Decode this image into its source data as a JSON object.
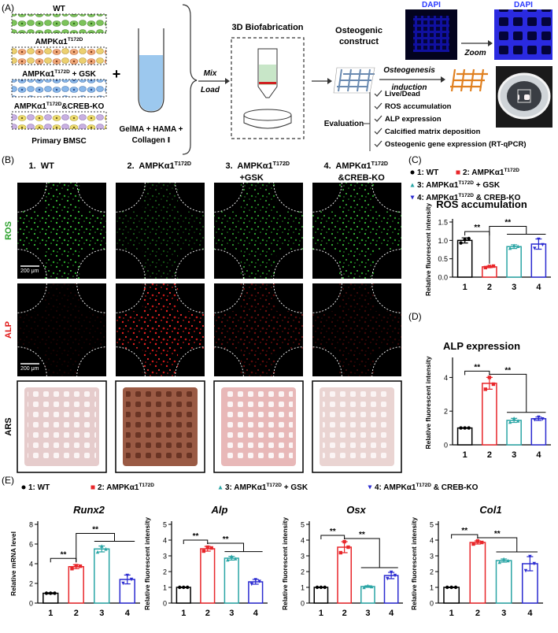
{
  "panel_a": {
    "label": "(A)",
    "groups": [
      {
        "text": "WT"
      },
      {
        "text": "AMPKα1",
        "sup": "T172D"
      },
      {
        "text": "AMPKα1",
        "sup": "T172D",
        "tail": " + GSK"
      },
      {
        "text": "AMPKα1",
        "sup": "T172D",
        "tail": "&CREB-KO"
      }
    ],
    "source": "Primary BMSC",
    "plus": "+",
    "matrix": [
      "GelMA + HAMA +",
      "Collagen Ⅰ"
    ],
    "mix": "Mix",
    "load": "Load",
    "fabrication": "3D Biofabrication",
    "construct": [
      "Osteogenic",
      "construct"
    ],
    "dapi": [
      "DAPI",
      "DAPI"
    ],
    "zoom": "Zoom",
    "induction": [
      "Osteogenesis",
      "induction"
    ],
    "evaluation": "Evaluation",
    "assays": [
      "Live/Dead",
      "ROS accumulation",
      "ALP expression",
      "Calcified matrix deposition",
      "Osteogenic gene expression (RT-qPCR)"
    ]
  },
  "panel_b": {
    "label": "(B)",
    "columns": [
      {
        "text": "1.  WT"
      },
      {
        "text": "2.  AMPKα1",
        "sup": "T172D"
      },
      {
        "text": "3.  AMPKα1",
        "sup": "T172D",
        "line2": "+GSK"
      },
      {
        "text": "4.  AMPKα1",
        "sup": "T172D",
        "line2": "&CREB-KO"
      }
    ],
    "rows": [
      "ROS",
      "ALP",
      "ARS"
    ],
    "scale_bars": [
      "200 μm",
      "200 μm"
    ]
  },
  "panel_labels": {
    "c": "(C)",
    "d": "(D)",
    "e": "(E)"
  },
  "legends": {
    "c": [
      {
        "text": "1: WT"
      },
      {
        "text": "2: AMPKα1",
        "sup": "T172D"
      },
      {
        "text": "3: AMPKα1",
        "sup": "T172D",
        "tail": " + GSK"
      },
      {
        "text": "4: AMPKα1",
        "sup": "T172D",
        "tail": " & CREB-KO"
      }
    ],
    "e": [
      {
        "text": "1: WT"
      },
      {
        "text": "2: AMPKα1",
        "sup": "T172D"
      },
      {
        "text": "3: AMPKα1",
        "sup": "T172D",
        "tail": " + GSK"
      },
      {
        "text": "4: AMPKα1",
        "sup": "T172D",
        "tail": " & CREB-KO"
      }
    ]
  },
  "chart_data": [
    {
      "type": "bar",
      "title": "ROS accumulation",
      "ylabel": "Relative fluorescent intensity",
      "categories": [
        "1",
        "2",
        "3",
        "4"
      ],
      "values": [
        1.0,
        0.28,
        0.83,
        0.9
      ],
      "errors": [
        0.07,
        0.02,
        0.05,
        0.14
      ],
      "points": [
        [
          0.93,
          1.02,
          1.05
        ],
        [
          0.26,
          0.29,
          0.3
        ],
        [
          0.79,
          0.86,
          0.84
        ],
        [
          0.78,
          1.03,
          0.88
        ]
      ],
      "colors": [
        "#000000",
        "#e8262a",
        "#2aa5a5",
        "#2a2ad0"
      ],
      "ylim": [
        0,
        1.5
      ],
      "yticks": [
        {
          "value": 0,
          "label": "0.0"
        },
        {
          "value": 0.5,
          "label": "0.5"
        },
        {
          "value": 1.0,
          "label": "1.0"
        },
        {
          "value": 1.5,
          "label": "1.5"
        }
      ],
      "annotations": [
        "**",
        "**"
      ]
    },
    {
      "type": "bar",
      "title": "ALP expression",
      "ylabel": "Relative fluorescent intensity",
      "categories": [
        "1",
        "2",
        "3",
        "4"
      ],
      "values": [
        1.0,
        3.65,
        1.45,
        1.55
      ],
      "errors": [
        0.02,
        0.35,
        0.12,
        0.1
      ],
      "points": [
        [
          1.0,
          1.0,
          1.0
        ],
        [
          3.3,
          4.0,
          3.6
        ],
        [
          1.35,
          1.58,
          1.42
        ],
        [
          1.48,
          1.64,
          1.53
        ]
      ],
      "colors": [
        "#000000",
        "#e8262a",
        "#2aa5a5",
        "#2a2ad0"
      ],
      "ylim": [
        0,
        5
      ],
      "yticks": [
        0,
        2,
        4
      ],
      "annotations": [
        "**",
        "**"
      ]
    },
    {
      "type": "bar",
      "title": "Runx2",
      "ylabel": "Relative mRNA level",
      "categories": [
        "1",
        "2",
        "3",
        "4"
      ],
      "values": [
        1.0,
        3.7,
        5.5,
        2.4
      ],
      "errors": [
        0.05,
        0.2,
        0.3,
        0.45
      ],
      "points": [
        [
          1.0,
          1.0,
          1.0
        ],
        [
          3.5,
          3.8,
          3.75
        ],
        [
          5.2,
          5.8,
          5.5
        ],
        [
          2.0,
          2.8,
          2.4
        ]
      ],
      "colors": [
        "#000000",
        "#e8262a",
        "#2aa5a5",
        "#2a2ad0"
      ],
      "ylim": [
        0,
        8
      ],
      "yticks": [
        0,
        2,
        4,
        6,
        8
      ],
      "annotations": [
        "**",
        "**"
      ]
    },
    {
      "type": "bar",
      "title": "Alp",
      "ylabel": "Relative fluorescent intensity",
      "categories": [
        "1",
        "2",
        "3",
        "4"
      ],
      "values": [
        1.0,
        3.45,
        2.85,
        1.35
      ],
      "errors": [
        0.02,
        0.15,
        0.12,
        0.15
      ],
      "points": [
        [
          1.0,
          1.0,
          1.0
        ],
        [
          3.3,
          3.55,
          3.5
        ],
        [
          2.75,
          2.98,
          2.82
        ],
        [
          1.2,
          1.48,
          1.37
        ]
      ],
      "colors": [
        "#000000",
        "#e8262a",
        "#2aa5a5",
        "#2a2ad0"
      ],
      "ylim": [
        0,
        5
      ],
      "yticks": [
        0,
        1,
        2,
        3,
        4,
        5
      ],
      "annotations": [
        "**",
        "**"
      ]
    },
    {
      "type": "bar",
      "title": "Osx",
      "ylabel": "Relative fluorescent intensity",
      "categories": [
        "1",
        "2",
        "3",
        "4"
      ],
      "values": [
        1.0,
        3.55,
        1.05,
        1.75
      ],
      "errors": [
        0.02,
        0.35,
        0.05,
        0.2
      ],
      "points": [
        [
          1.0,
          1.0,
          1.0
        ],
        [
          3.2,
          3.9,
          3.55
        ],
        [
          1.0,
          1.1,
          1.05
        ],
        [
          1.55,
          1.95,
          1.75
        ]
      ],
      "colors": [
        "#000000",
        "#e8262a",
        "#2aa5a5",
        "#2a2ad0"
      ],
      "ylim": [
        0,
        5
      ],
      "yticks": [
        0,
        1,
        2,
        3,
        4,
        5
      ],
      "annotations": [
        "**",
        "**"
      ]
    },
    {
      "type": "bar",
      "title": "Col1",
      "ylabel": "Relative fluorescent intensity",
      "categories": [
        "1",
        "2",
        "3",
        "4"
      ],
      "values": [
        1.0,
        3.85,
        2.7,
        2.5
      ],
      "errors": [
        0.02,
        0.1,
        0.1,
        0.45
      ],
      "points": [
        [
          1.0,
          1.0,
          1.0
        ],
        [
          3.75,
          3.95,
          3.85
        ],
        [
          2.6,
          2.8,
          2.7
        ],
        [
          2.05,
          2.95,
          2.5
        ]
      ],
      "colors": [
        "#000000",
        "#e8262a",
        "#2aa5a5",
        "#2a2ad0"
      ],
      "ylim": [
        0,
        5
      ],
      "yticks": [
        0,
        1,
        2,
        3,
        4,
        5
      ],
      "annotations": [
        "**",
        "**"
      ]
    }
  ]
}
